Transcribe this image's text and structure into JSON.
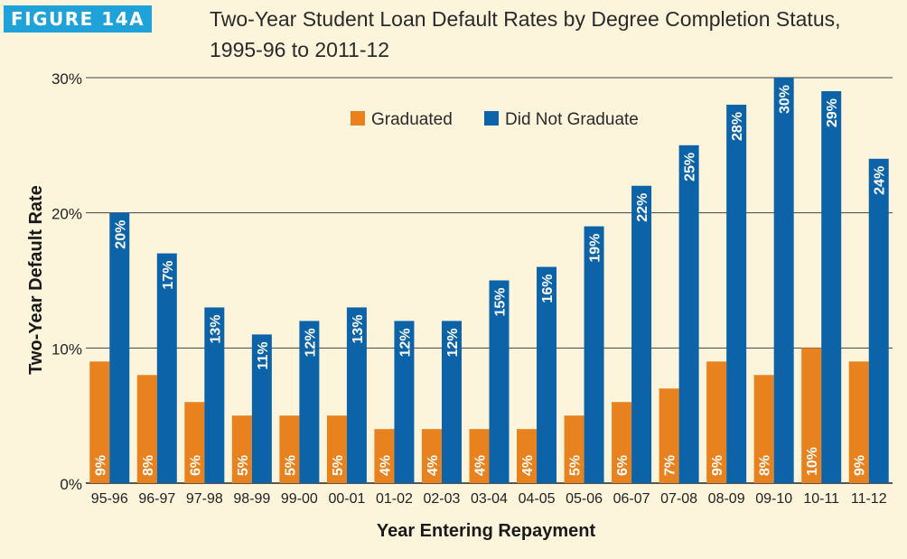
{
  "figure": {
    "label": "FIGURE 14A",
    "title": "Two-Year Student Loan Default Rates by Degree Completion Status, 1995-96 to 2011-12"
  },
  "colors": {
    "graduated": "#e8821e",
    "did_not_graduate": "#0d63a7",
    "label_accent": "#1ea2d8",
    "background": "#fdf4dc"
  },
  "chart_data": {
    "type": "bar",
    "title": "Two-Year Student Loan Default Rates by Degree Completion Status, 1995-96 to 2011-12",
    "xlabel": "Year Entering Repayment",
    "ylabel": "Two-Year Default Rate",
    "ylim": [
      0,
      30
    ],
    "yticks": [
      "0%",
      "10%",
      "20%",
      "30%"
    ],
    "grid": true,
    "legend_position": "top-center",
    "categories": [
      "95-96",
      "96-97",
      "97-98",
      "98-99",
      "99-00",
      "00-01",
      "01-02",
      "02-03",
      "03-04",
      "04-05",
      "05-06",
      "06-07",
      "07-08",
      "08-09",
      "09-10",
      "10-11",
      "11-12"
    ],
    "series": [
      {
        "name": "Graduated",
        "values": [
          9,
          8,
          6,
          5,
          5,
          5,
          4,
          4,
          4,
          4,
          5,
          6,
          7,
          9,
          8,
          10,
          9
        ],
        "labels": [
          "9%",
          "8%",
          "6%",
          "5%",
          "5%",
          "5%",
          "4%",
          "4%",
          "4%",
          "4%",
          "5%",
          "6%",
          "7%",
          "9%",
          "8%",
          "10%",
          "9%"
        ]
      },
      {
        "name": "Did Not Graduate",
        "values": [
          20,
          17,
          13,
          11,
          12,
          13,
          12,
          12,
          15,
          16,
          19,
          22,
          25,
          28,
          30,
          29,
          24
        ],
        "labels": [
          "20%",
          "17%",
          "13%",
          "11%",
          "12%",
          "13%",
          "12%",
          "12%",
          "15%",
          "16%",
          "19%",
          "22%",
          "25%",
          "28%",
          "30%",
          "29%",
          "24%"
        ]
      }
    ]
  }
}
